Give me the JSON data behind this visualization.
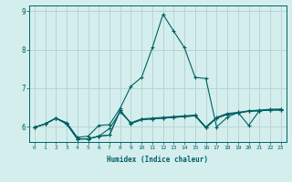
{
  "xlabel": "Humidex (Indice chaleur)",
  "bg_color": "#d4eeee",
  "grid_color": "#b8d4d4",
  "line_color": "#006060",
  "spine_color": "#006060",
  "xlim": [
    -0.5,
    23.5
  ],
  "ylim": [
    5.6,
    9.15
  ],
  "yticks": [
    6,
    7,
    8,
    9
  ],
  "xticks": [
    0,
    1,
    2,
    3,
    4,
    5,
    6,
    7,
    8,
    9,
    10,
    11,
    12,
    13,
    14,
    15,
    16,
    17,
    18,
    19,
    20,
    21,
    22,
    23
  ],
  "series": [
    [
      5.98,
      6.07,
      6.22,
      6.07,
      5.68,
      5.68,
      5.75,
      5.78,
      6.42,
      6.08,
      6.18,
      6.2,
      6.22,
      6.24,
      6.26,
      6.28,
      5.97,
      6.22,
      6.32,
      6.35,
      6.4,
      6.41,
      6.43,
      6.43
    ],
    [
      5.98,
      6.07,
      6.22,
      6.07,
      5.68,
      5.68,
      5.75,
      5.78,
      6.42,
      6.08,
      6.18,
      6.2,
      6.22,
      6.24,
      6.26,
      6.28,
      5.97,
      6.22,
      6.32,
      6.35,
      6.4,
      6.41,
      6.43,
      6.43
    ],
    [
      5.98,
      6.07,
      6.22,
      6.07,
      5.68,
      5.68,
      5.75,
      5.95,
      6.38,
      6.1,
      6.2,
      6.22,
      6.24,
      6.26,
      6.28,
      6.3,
      5.99,
      6.24,
      6.34,
      6.37,
      6.41,
      6.43,
      6.45,
      6.45
    ],
    [
      5.98,
      6.07,
      6.22,
      6.1,
      5.72,
      5.75,
      6.03,
      6.05,
      6.48,
      7.05,
      7.28,
      8.05,
      8.92,
      8.48,
      8.05,
      7.28,
      7.25,
      5.99,
      6.24,
      6.37,
      6.03,
      6.41,
      6.44,
      6.45
    ]
  ]
}
